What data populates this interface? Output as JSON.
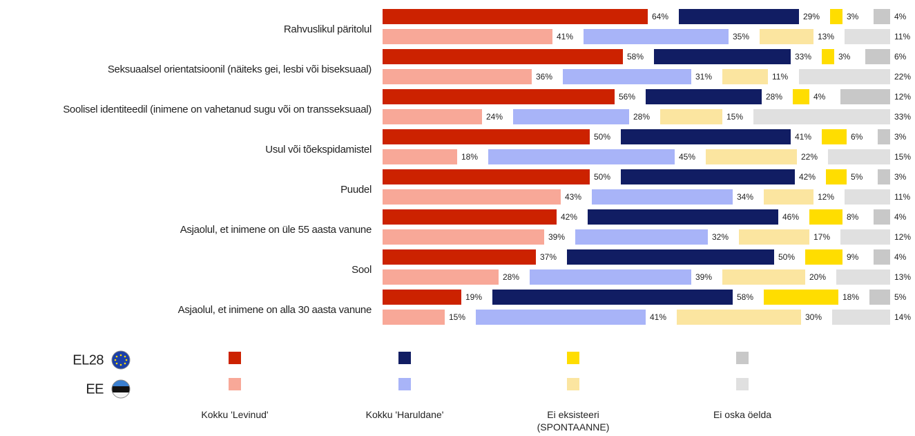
{
  "chart_data": {
    "type": "stacked_bar",
    "categories": [
      "Rahvuslikul päritolul",
      "Seksuaalsel orientatsioonil (näiteks gei, lesbi või biseksuaal)",
      "Soolisel identiteedil (inimene on vahetanud sugu või on transseksuaal)",
      "Usul või tõekspidamistel",
      "Puudel",
      "Asjaolul, et inimene on üle 55 aasta vanune",
      "Sool",
      "Asjaolul, et inimene on alla 30 aasta vanune"
    ],
    "groups": [
      "EL28",
      "EE"
    ],
    "series": [
      {
        "name": "Kokku 'Levinud'",
        "colors": [
          "#cc2200",
          "#f8a898"
        ],
        "values": [
          [
            64,
            58,
            56,
            50,
            50,
            42,
            37,
            19
          ],
          [
            41,
            36,
            24,
            18,
            43,
            39,
            28,
            15
          ]
        ],
        "value_labels": [
          [
            "64%",
            "58%",
            "56%",
            "50%",
            "50%",
            "42%",
            "37%",
            "19%"
          ],
          [
            "41%",
            "36%",
            "24%",
            "18%",
            "43%",
            "39%",
            "28%",
            "15%"
          ]
        ]
      },
      {
        "name": "Kokku 'Haruldane'",
        "colors": [
          "#111d63",
          "#a8b4f8"
        ],
        "values": [
          [
            29,
            33,
            28,
            41,
            42,
            46,
            50,
            58
          ],
          [
            35,
            31,
            28,
            45,
            34,
            32,
            39,
            41
          ]
        ],
        "value_labels": [
          [
            "29%",
            "33%",
            "28%",
            "41%",
            "42%",
            "46%",
            "50%",
            "58%"
          ],
          [
            "35%",
            "31%",
            "28%",
            "45%",
            "34%",
            "32%",
            "39%",
            "41%"
          ]
        ]
      },
      {
        "name": "Ei eksisteeri (SPONTAANNE)",
        "colors": [
          "#ffdd00",
          "#fbe5a0"
        ],
        "values": [
          [
            3,
            3,
            4,
            6,
            5,
            8,
            9,
            18
          ],
          [
            13,
            11,
            15,
            22,
            12,
            17,
            20,
            30
          ]
        ],
        "value_labels": [
          [
            "3%",
            "3%",
            "4%",
            "6%",
            "5%",
            "8%",
            "9%",
            "18%"
          ],
          [
            "13%",
            "11%",
            "15%",
            "22%",
            "12%",
            "17%",
            "20%",
            "30%"
          ]
        ]
      },
      {
        "name": "Ei oska öelda",
        "colors": [
          "#c8c8c8",
          "#e0e0e0"
        ],
        "values": [
          [
            4,
            6,
            12,
            3,
            3,
            4,
            4,
            5
          ],
          [
            11,
            22,
            33,
            15,
            11,
            12,
            13,
            14
          ]
        ],
        "value_labels": [
          [
            "4%",
            "6%",
            "12%",
            "3%",
            "3%",
            "4%",
            "4%",
            "5%"
          ],
          [
            "11%",
            "22%",
            "33%",
            "15%",
            "11%",
            "12%",
            "13%",
            "14%"
          ]
        ]
      }
    ]
  }
}
